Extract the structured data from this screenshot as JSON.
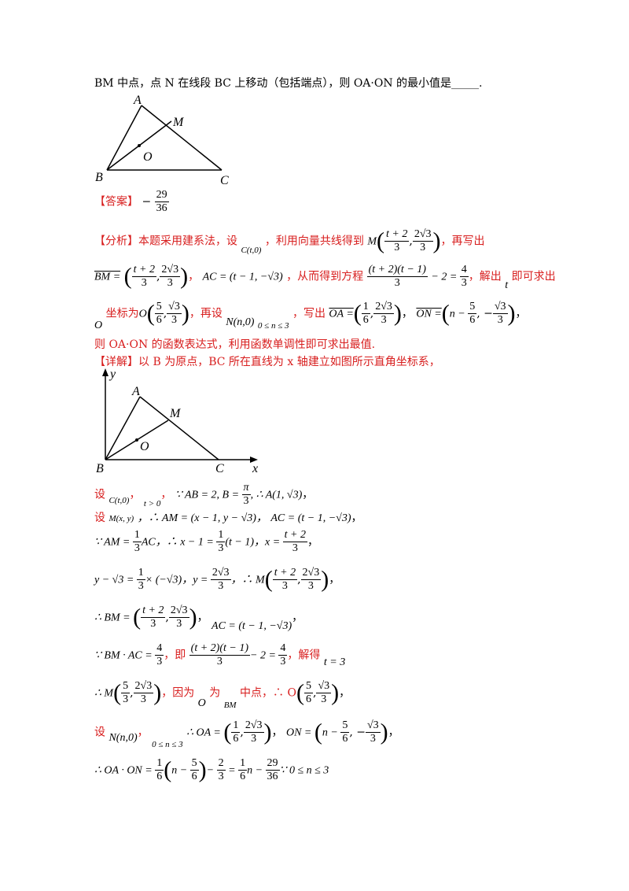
{
  "question": {
    "line1": "BM 中点，点 N 在线段 BC 上移动（包括端点），则 OA·ON 的最小值是_____."
  },
  "figure1": {
    "A": "A",
    "B": "B",
    "C": "C",
    "M": "M",
    "O": "O"
  },
  "answer": {
    "label": "【答案】",
    "sign": "−",
    "num": "29",
    "den": "36"
  },
  "analysis": {
    "label": "【分析】",
    "l1a": "本题采用建系法，设",
    "l1b": "C(t,0)",
    "l1c": "，利用向量共线得到",
    "l1d": "M",
    "l1e": "，再写出",
    "l2a": "BM =",
    "l2b": "，",
    "l2c": "AC = (t − 1, −√3)",
    "l2d": "，从而得到方程",
    "l2e": "− 2 = ",
    "l2f": "，解出",
    "l2g": "t",
    "l2h": "即可求出",
    "l3a": "O",
    "l3b": "坐标为",
    "l3c": "O",
    "l3d": "，再设",
    "l3e": "N(n,0)",
    "l3f": "0 ≤ n ≤ 3",
    "l3g": "，写出",
    "l3h": "OA =",
    "l3i": "ON =",
    "l4": "则 OA·ON 的函数表达式，利用函数单调性即可求出最值."
  },
  "detail": {
    "label": "【详解】",
    "text": "以 B 为原点，BC 所在直线为 x 轴建立如图所示直角坐标系，"
  },
  "figure2": {
    "A": "A",
    "B": "B",
    "C": "C",
    "M": "M",
    "O": "O",
    "x": "x",
    "y": "y"
  },
  "steps": {
    "s1a": "设",
    "s1b": "C(t,0)",
    "s1c": "t > 0",
    "s1d": "∵ AB = 2, B = ",
    "s1e": ", ∴ A(1, √3)",
    "s2a": "设",
    "s2b": "M(x, y)",
    "s2c": "，∴ AM = (x − 1, y − √3)，",
    "s2d": "AC = (t − 1, −√3)",
    "s3a": "∵ AM = ",
    "s3b": "AC",
    "s3c": "，∴ x − 1 = ",
    "s3d": "(t − 1)",
    "s3e": "，x = ",
    "s4a": "y − √3 = ",
    "s4b": "× (−√3)",
    "s4c": "，y = ",
    "s4d": "，∴ M",
    "s5a": "∴ BM = ",
    "s5b": "AC = (t − 1, −√3)",
    "s6a": "∵ BM · AC = ",
    "s6b": "，即",
    "s6c": "− 2 = ",
    "s6d": "，解得",
    "s6e": "t = 3",
    "s7a": "∴ M",
    "s7b": "，因为",
    "s7c": "O",
    "s7d": "为",
    "s7e": "BM",
    "s7f": "中点，∴ O",
    "s8a": "设",
    "s8b": "N(n,0)",
    "s8c": "0 ≤ n ≤ 3",
    "s8d": "∴ OA = ",
    "s8e": "ON = ",
    "s9a": "∴ OA · ON = ",
    "s9b": "− ",
    "s9c": " = ",
    "s9d": "n − ",
    "s9e": "∵ 0 ≤ n ≤ 3"
  },
  "colors": {
    "red": "#d81e1e",
    "black": "#000000"
  }
}
